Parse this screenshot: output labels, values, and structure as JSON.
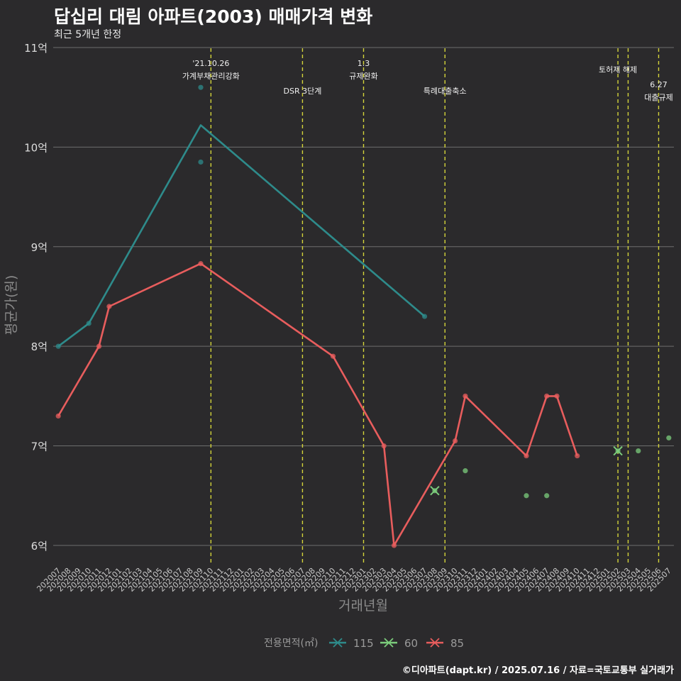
{
  "chart_data": {
    "type": "line",
    "title": "답십리 대림 아파트(2003) 매매가격 변화",
    "subtitle": "최근 5개년 한정",
    "xlabel": "거래년월",
    "ylabel": "평균가(원)",
    "caption": "©디아파트(dapt.kr) / 2025.07.16 / 자료=국토교통부 실거래가",
    "legend": {
      "title": "전용면적(㎡)",
      "position": "bottom",
      "entries": [
        {
          "label": "115",
          "color": "#2e8b8b"
        },
        {
          "label": "60",
          "color": "#7ccd7c"
        },
        {
          "label": "85",
          "color": "#e85d5d"
        }
      ]
    },
    "x_categories": [
      "202007",
      "202008",
      "202009",
      "202010",
      "202011",
      "202012",
      "202101",
      "202102",
      "202103",
      "202104",
      "202105",
      "202106",
      "202107",
      "202108",
      "202109",
      "202110",
      "202111",
      "202112",
      "202201",
      "202202",
      "202203",
      "202204",
      "202205",
      "202206",
      "202207",
      "202208",
      "202209",
      "202210",
      "202211",
      "202212",
      "202301",
      "202302",
      "202303",
      "202304",
      "202305",
      "202306",
      "202307",
      "202308",
      "202309",
      "202310",
      "202311",
      "202312",
      "202401",
      "202402",
      "202403",
      "202404",
      "202405",
      "202406",
      "202407",
      "202408",
      "202409",
      "202410",
      "202411",
      "202412",
      "202501",
      "202502",
      "202503",
      "202504",
      "202505",
      "202506",
      "202507"
    ],
    "y_ticks": [
      {
        "value": 6,
        "label": "6억"
      },
      {
        "value": 7,
        "label": "7억"
      },
      {
        "value": 8,
        "label": "8억"
      },
      {
        "value": 9,
        "label": "9억"
      },
      {
        "value": 10,
        "label": "10억"
      },
      {
        "value": 11,
        "label": "11억"
      }
    ],
    "ylim": [
      5.8,
      11.05
    ],
    "grid": true,
    "series": [
      {
        "name": "115",
        "color": "#2e8b8b",
        "line": [
          {
            "x": "202007",
            "y": 8.0
          },
          {
            "x": "202010",
            "y": 8.23
          },
          {
            "x": "202109",
            "y": 10.22
          },
          {
            "x": "202307",
            "y": 8.3
          }
        ],
        "points": [
          {
            "x": "202007",
            "y": 8.0
          },
          {
            "x": "202010",
            "y": 8.23
          },
          {
            "x": "202109",
            "y": 10.6
          },
          {
            "x": "202109",
            "y": 9.85
          },
          {
            "x": "202307",
            "y": 8.3
          }
        ]
      },
      {
        "name": "60",
        "color": "#7ccd7c",
        "line": [],
        "points": [
          {
            "x": "202308",
            "y": 6.55,
            "cross": true
          },
          {
            "x": "202311",
            "y": 6.75
          },
          {
            "x": "202405",
            "y": 6.5
          },
          {
            "x": "202407",
            "y": 6.5
          },
          {
            "x": "202502",
            "y": 6.95,
            "cross": true
          },
          {
            "x": "202504",
            "y": 6.95
          },
          {
            "x": "202507",
            "y": 7.08
          }
        ]
      },
      {
        "name": "85",
        "color": "#e85d5d",
        "line": [
          {
            "x": "202007",
            "y": 7.3
          },
          {
            "x": "202011",
            "y": 8.0
          },
          {
            "x": "202012",
            "y": 8.4
          },
          {
            "x": "202109",
            "y": 8.83
          },
          {
            "x": "202210",
            "y": 7.9
          },
          {
            "x": "202303",
            "y": 7.0
          },
          {
            "x": "202304",
            "y": 6.0
          },
          {
            "x": "202310",
            "y": 7.05
          },
          {
            "x": "202311",
            "y": 7.5
          },
          {
            "x": "202405",
            "y": 6.9
          },
          {
            "x": "202407",
            "y": 7.5
          },
          {
            "x": "202408",
            "y": 7.5
          },
          {
            "x": "202410",
            "y": 6.9
          }
        ],
        "points": [
          {
            "x": "202007",
            "y": 7.3
          },
          {
            "x": "202011",
            "y": 8.0
          },
          {
            "x": "202012",
            "y": 8.4
          },
          {
            "x": "202109",
            "y": 8.83
          },
          {
            "x": "202210",
            "y": 7.9
          },
          {
            "x": "202303",
            "y": 7.0
          },
          {
            "x": "202304",
            "y": 6.0
          },
          {
            "x": "202310",
            "y": 7.05
          },
          {
            "x": "202311",
            "y": 7.5
          },
          {
            "x": "202405",
            "y": 6.9
          },
          {
            "x": "202407",
            "y": 7.5
          },
          {
            "x": "202408",
            "y": 7.5
          },
          {
            "x": "202410",
            "y": 6.9
          }
        ]
      }
    ],
    "annotations": [
      {
        "x": "202110",
        "lines": [
          "'21.10.26",
          "가계부채관리강화"
        ],
        "level": "high"
      },
      {
        "x": "202207",
        "lines": [
          "DSR 3단계"
        ],
        "level": "low"
      },
      {
        "x": "202301",
        "lines": [
          "1.3",
          "규제완화"
        ],
        "level": "high"
      },
      {
        "x": "202309",
        "lines": [
          "특례대출축소"
        ],
        "level": "low"
      },
      {
        "x": "202502",
        "lines": [
          "토허제 해제"
        ],
        "level": "mid"
      },
      {
        "x": "202503",
        "lines": [],
        "level": "mid"
      },
      {
        "x": "202506",
        "lines": [
          "6.27",
          "대출규제"
        ],
        "level": "lowpair"
      }
    ]
  }
}
